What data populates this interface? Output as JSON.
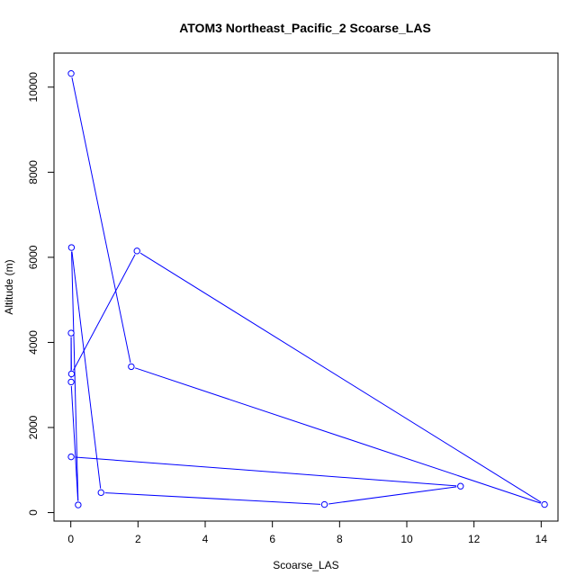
{
  "colors": {
    "series": "#0000ff",
    "axis": "#000000",
    "background": "#ffffff"
  },
  "chart_data": {
    "type": "line",
    "title": "ATOM3 Northeast_Pacific_2 Scoarse_LAS",
    "xlabel": "Scoarse_LAS",
    "ylabel": "Altitude (m)",
    "xlim": [
      -0.5,
      14.5
    ],
    "ylim": [
      -200,
      10800
    ],
    "xticks": [
      0,
      2,
      4,
      6,
      8,
      10,
      12,
      14
    ],
    "yticks": [
      0,
      2000,
      4000,
      6000,
      8000,
      10000
    ],
    "grid": false,
    "legend": "none",
    "markers": "open-circle",
    "series": [
      {
        "points": [
          {
            "x": 0.01,
            "y": 10320
          },
          {
            "x": 1.8,
            "y": 3430
          },
          {
            "x": 14.1,
            "y": 190
          },
          {
            "x": 1.97,
            "y": 6150
          },
          {
            "x": 0.02,
            "y": 3260
          },
          {
            "x": 0.01,
            "y": 4220
          },
          {
            "x": 0.01,
            "y": 3070
          },
          {
            "x": 0.22,
            "y": 180
          },
          {
            "x": 0.02,
            "y": 6230
          },
          {
            "x": 0.9,
            "y": 470
          },
          {
            "x": 7.55,
            "y": 190
          },
          {
            "x": 11.6,
            "y": 620
          },
          {
            "x": 0.01,
            "y": 1310
          }
        ]
      }
    ]
  }
}
